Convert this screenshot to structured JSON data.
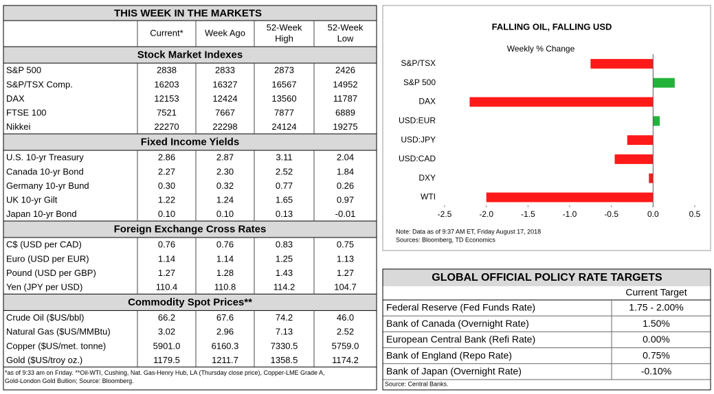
{
  "markets": {
    "title": "THIS WEEK IN THE MARKETS",
    "columns": [
      [
        "Current*"
      ],
      [
        "Week Ago"
      ],
      [
        "52-Week",
        "High"
      ],
      [
        "52-Week",
        "Low"
      ]
    ],
    "sections": [
      {
        "title": "Stock Market Indexes",
        "rows": [
          [
            "S&P 500",
            "2838",
            "2833",
            "2873",
            "2426"
          ],
          [
            "S&P/TSX Comp.",
            "16203",
            "16327",
            "16567",
            "14952"
          ],
          [
            "DAX",
            "12153",
            "12424",
            "13560",
            "11787"
          ],
          [
            "FTSE 100",
            "7521",
            "7667",
            "7877",
            "6889"
          ],
          [
            "Nikkei",
            "22270",
            "22298",
            "24124",
            "19275"
          ]
        ]
      },
      {
        "title": "Fixed Income Yields",
        "rows": [
          [
            "U.S. 10-yr Treasury",
            "2.86",
            "2.87",
            "3.11",
            "2.04"
          ],
          [
            "Canada 10-yr Bond",
            "2.27",
            "2.30",
            "2.52",
            "1.84"
          ],
          [
            "Germany 10-yr Bund",
            "0.30",
            "0.32",
            "0.77",
            "0.26"
          ],
          [
            "UK 10-yr Gilt",
            "1.22",
            "1.24",
            "1.65",
            "0.97"
          ],
          [
            "Japan 10-yr Bond",
            "0.10",
            "0.10",
            "0.13",
            "-0.01"
          ]
        ]
      },
      {
        "title": "Foreign Exchange Cross Rates",
        "rows": [
          [
            "C$ (USD per CAD)",
            "0.76",
            "0.76",
            "0.83",
            "0.75"
          ],
          [
            "Euro (USD per EUR)",
            "1.14",
            "1.14",
            "1.25",
            "1.13"
          ],
          [
            "Pound (USD per GBP)",
            "1.27",
            "1.28",
            "1.43",
            "1.27"
          ],
          [
            "Yen (JPY per USD)",
            "110.4",
            "110.8",
            "114.2",
            "104.7"
          ]
        ]
      },
      {
        "title": "Commodity Spot Prices**",
        "rows": [
          [
            "Crude Oil ($US/bbl)",
            "66.2",
            "67.6",
            "74.2",
            "46.0"
          ],
          [
            "Natural Gas ($US/MMBtu)",
            "3.02",
            "2.96",
            "7.13",
            "2.52"
          ],
          [
            "Copper ($US/met. tonne)",
            "5901.0",
            "6160.3",
            "7330.5",
            "5759.0"
          ],
          [
            "Gold ($US/troy oz.)",
            "1179.5",
            "1211.7",
            "1358.5",
            "1174.2"
          ]
        ]
      }
    ],
    "footnote": [
      "*as of 9:33 am on Friday. **Oil-WTI, Cushing, Nat. Gas-Henry Hub, LA (Thursday close price), Copper-LME Grade A,",
      "Gold-London Gold Bullion; Source: Bloomberg."
    ]
  },
  "chart_data": {
    "type": "bar",
    "orientation": "horizontal",
    "title": "FALLING OIL, FALLING USD",
    "subtitle": "Weekly % Change",
    "categories": [
      "S&P/TSX",
      "S&P 500",
      "DAX",
      "USD:EUR",
      "USD:JPY",
      "USD:CAD",
      "DXY",
      "WTI"
    ],
    "values": [
      -0.75,
      0.26,
      -2.2,
      0.08,
      -0.31,
      -0.46,
      -0.05,
      -2.0
    ],
    "color_negative": "#ff1a1a",
    "color_positive": "#22b33a",
    "xlim": [
      -2.5,
      0.5
    ],
    "xticks": [
      -2.5,
      {
        "value": -2,
        "label": "-2.0"
      },
      -1.5,
      {
        "value": -1,
        "label": "-1.0"
      },
      -0.5,
      {
        "value": 0,
        "label": "0.0"
      },
      0.5
    ],
    "notes": [
      "Note: Data as of  9:37  AM ET, Friday August 17, 2018",
      "Sources: Bloomberg, TD Economics"
    ]
  },
  "policy": {
    "title": "GLOBAL OFFICIAL POLICY RATE TARGETS",
    "column": "Current Target",
    "rows": [
      [
        "Federal Reserve (Fed Funds Rate)",
        "1.75 - 2.00%"
      ],
      [
        "Bank of Canada (Overnight Rate)",
        "1.50%"
      ],
      [
        "European Central Bank (Refi Rate)",
        "0.00%"
      ],
      [
        "Bank of England (Repo Rate)",
        "0.75%"
      ],
      [
        "Bank of Japan (Overnight Rate)",
        "-0.10%"
      ]
    ],
    "source": "Source: Central Banks."
  }
}
